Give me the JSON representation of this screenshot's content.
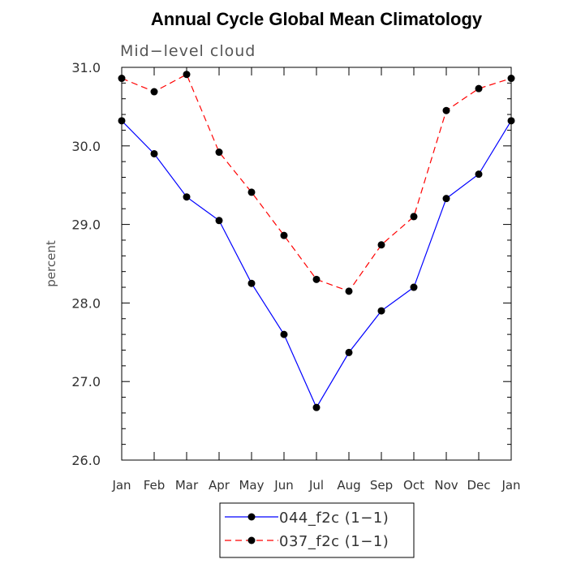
{
  "chart_data": {
    "type": "line",
    "title": "Annual Cycle Global Mean Climatology",
    "subtitle": "Mid−level cloud",
    "xlabel": "",
    "ylabel": "percent",
    "categories": [
      "Jan",
      "Feb",
      "Mar",
      "Apr",
      "May",
      "Jun",
      "Jul",
      "Aug",
      "Sep",
      "Oct",
      "Nov",
      "Dec",
      "Jan"
    ],
    "ylim": [
      26.0,
      31.0
    ],
    "yticks": [
      "26.0",
      "27.0",
      "28.0",
      "29.0",
      "30.0",
      "31.0"
    ],
    "grid": false,
    "legend_position": "bottom-center",
    "series": [
      {
        "name": "044_f2c (1−1)",
        "color": "#0000ff",
        "dash": "solid",
        "marker": "filled-circle",
        "values": [
          30.32,
          29.9,
          29.35,
          29.05,
          28.25,
          27.6,
          26.67,
          27.37,
          27.9,
          28.2,
          29.33,
          29.64,
          30.32
        ]
      },
      {
        "name": "037_f2c (1−1)",
        "color": "#ff0000",
        "dash": "dashed",
        "marker": "filled-circle",
        "values": [
          30.86,
          30.69,
          30.91,
          29.92,
          29.41,
          28.86,
          28.3,
          28.15,
          28.74,
          29.1,
          30.45,
          30.73,
          30.86
        ]
      }
    ]
  }
}
